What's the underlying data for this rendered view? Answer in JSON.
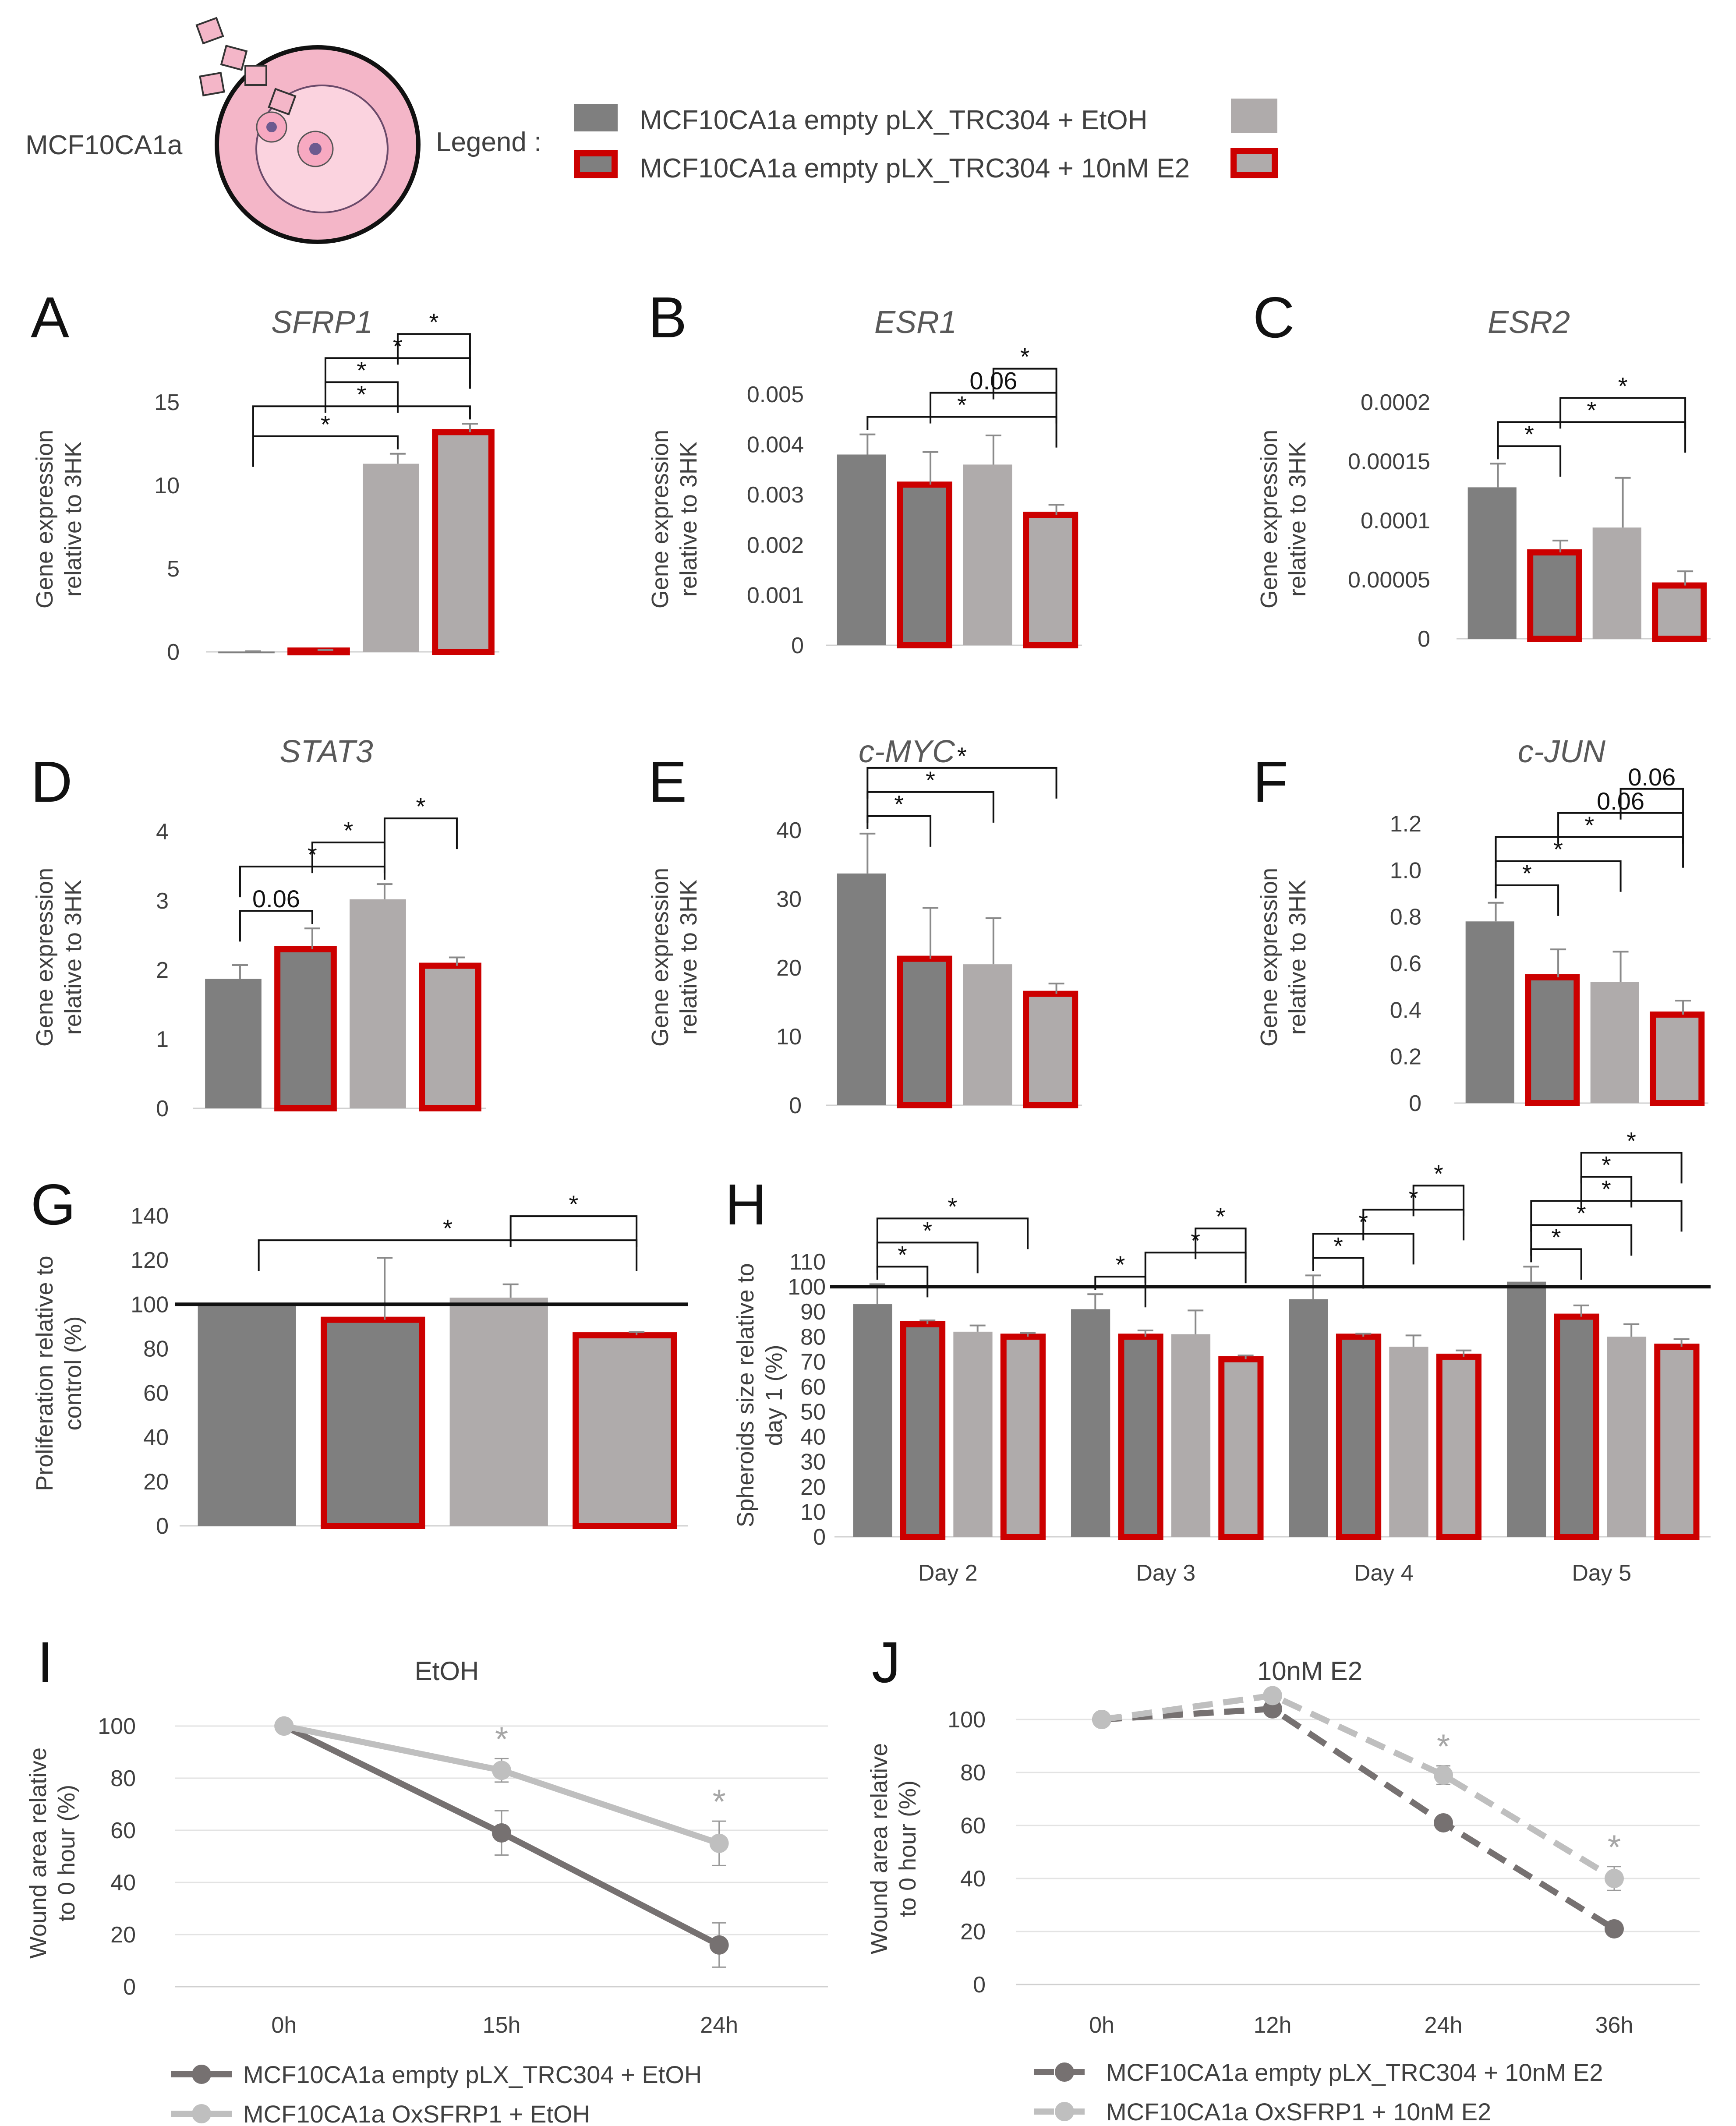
{
  "header": {
    "cell_label": "MCF10CA1a",
    "legend_title": "Legend :",
    "legend_items": [
      "MCF10CA1a empty pLX_TRC304 + EtOH",
      "MCF10CA1a empty pLX_TRC304 + 10nM E2"
    ]
  },
  "colors": {
    "dark_bar": "#7f7f7f",
    "light_bar": "#afabab",
    "highlight_outline": "#cc0000",
    "line_dark": "#767171",
    "line_light": "#bfbfbf"
  },
  "chart_data": [
    {
      "panel": "A",
      "type": "bar",
      "title": "SFRP1",
      "ylabel": [
        "Gene expression",
        "relative to 3HK"
      ],
      "ylim": [
        0,
        15
      ],
      "yticks": [
        "0",
        "5",
        "10",
        "15"
      ],
      "ytick_values": [
        0,
        5,
        10,
        15
      ],
      "values": [
        0.02,
        0.08,
        11.3,
        13.2
      ],
      "errors": [
        0.02,
        0.03,
        0.6,
        0.5
      ],
      "significance": [
        {
          "from": 0,
          "to": 2,
          "label": "*"
        },
        {
          "from": 0,
          "to": 3,
          "label": "*"
        },
        {
          "from": 1,
          "to": 2,
          "label": "*"
        },
        {
          "from": 1,
          "to": 3,
          "label": "*"
        },
        {
          "from": 2,
          "to": 3,
          "label": "*"
        }
      ]
    },
    {
      "panel": "B",
      "type": "bar",
      "title": "ESR1",
      "ylabel": [
        "Gene expression",
        "relative to 3HK"
      ],
      "ylim": [
        0,
        0.005
      ],
      "yticks": [
        "0",
        "0.001",
        "0.002",
        "0.003",
        "0.004",
        "0.005"
      ],
      "ytick_values": [
        0,
        0.001,
        0.002,
        0.003,
        0.004,
        0.005
      ],
      "values": [
        0.0038,
        0.0032,
        0.0036,
        0.0026
      ],
      "errors": [
        0.0004,
        0.00065,
        0.00058,
        0.0002
      ],
      "significance": [
        {
          "from": 0,
          "to": 3,
          "label": "*"
        },
        {
          "from": 1,
          "to": 3,
          "label": "0.06"
        },
        {
          "from": 2,
          "to": 3,
          "label": "*"
        }
      ]
    },
    {
      "panel": "C",
      "type": "bar",
      "title": "ESR2",
      "ylabel": [
        "Gene expression",
        "relative to 3HK"
      ],
      "ylim": [
        0,
        0.0002
      ],
      "yticks": [
        "0",
        "0.00005",
        "0.0001",
        "0.00015",
        "0.0002"
      ],
      "ytick_values": [
        0,
        5e-05,
        0.0001,
        0.00015,
        0.0002
      ],
      "values": [
        0.000128,
        7.3e-05,
        9.4e-05,
        4.5e-05
      ],
      "errors": [
        2e-05,
        1e-05,
        4.2e-05,
        1.2e-05
      ],
      "significance": [
        {
          "from": 0,
          "to": 1,
          "label": "*"
        },
        {
          "from": 0,
          "to": 3,
          "label": "*"
        },
        {
          "from": 1,
          "to": 3,
          "label": "*"
        }
      ]
    },
    {
      "panel": "D",
      "type": "bar",
      "title": "STAT3",
      "ylabel": [
        "Gene expression",
        "relative to 3HK"
      ],
      "ylim": [
        0,
        4
      ],
      "yticks": [
        "0",
        "1",
        "2",
        "3",
        "4"
      ],
      "ytick_values": [
        0,
        1,
        2,
        3,
        4
      ],
      "values": [
        1.87,
        2.3,
        3.02,
        2.06
      ],
      "errors": [
        0.2,
        0.3,
        0.22,
        0.12
      ],
      "significance": [
        {
          "from": 0,
          "to": 1,
          "label": "0.06"
        },
        {
          "from": 0,
          "to": 2,
          "label": "*"
        },
        {
          "from": 1,
          "to": 2,
          "label": "*"
        },
        {
          "from": 2,
          "to": 3,
          "label": "*"
        }
      ]
    },
    {
      "panel": "E",
      "type": "bar",
      "title": "c-MYC",
      "ylabel": [
        "Gene expression",
        "relative to 3HK"
      ],
      "ylim": [
        0,
        40
      ],
      "yticks": [
        "0",
        "10",
        "20",
        "30",
        "40"
      ],
      "ytick_values": [
        0,
        10,
        20,
        30,
        40
      ],
      "values": [
        33.7,
        21.3,
        20.5,
        16.2
      ],
      "errors": [
        5.8,
        7.4,
        6.7,
        1.5
      ],
      "significance": [
        {
          "from": 0,
          "to": 1,
          "label": "*"
        },
        {
          "from": 0,
          "to": 2,
          "label": "*"
        },
        {
          "from": 0,
          "to": 3,
          "label": "*"
        }
      ]
    },
    {
      "panel": "F",
      "type": "bar",
      "title": "c-JUN",
      "ylabel": [
        "Gene expression",
        "relative to 3HK"
      ],
      "ylim": [
        0,
        1.2
      ],
      "yticks": [
        "0",
        "0.2",
        "0.4",
        "0.6",
        "0.8",
        "1.0",
        "1.2"
      ],
      "ytick_values": [
        0,
        0.2,
        0.4,
        0.6,
        0.8,
        1.0,
        1.2
      ],
      "values": [
        0.78,
        0.54,
        0.52,
        0.38
      ],
      "errors": [
        0.08,
        0.12,
        0.13,
        0.06
      ],
      "significance": [
        {
          "from": 0,
          "to": 1,
          "label": "*"
        },
        {
          "from": 0,
          "to": 2,
          "label": "*"
        },
        {
          "from": 0,
          "to": 3,
          "label": "*"
        },
        {
          "from": 1,
          "to": 3,
          "label": "0.06"
        },
        {
          "from": 2,
          "to": 3,
          "label": "0.06"
        }
      ]
    },
    {
      "panel": "G",
      "type": "bar",
      "ylabel": [
        "Proliferation relative to",
        "control (%)"
      ],
      "ylim": [
        0,
        140
      ],
      "yticks": [
        "0",
        "20",
        "40",
        "60",
        "80",
        "100",
        "120",
        "140"
      ],
      "ytick_values": [
        0,
        20,
        40,
        60,
        80,
        100,
        120,
        140
      ],
      "reference_line": 100,
      "values": [
        100,
        93,
        103,
        86
      ],
      "errors": [
        0,
        28,
        6,
        1.5
      ],
      "significance": [
        {
          "from": 0,
          "to": 3,
          "label": "*"
        },
        {
          "from": 2,
          "to": 3,
          "label": "*"
        }
      ]
    },
    {
      "panel": "H",
      "type": "bar",
      "ylabel": [
        "Spheroids size relative to",
        "day 1 (%)"
      ],
      "ylim": [
        0,
        110
      ],
      "yticks": [
        "0",
        "10",
        "20",
        "30",
        "40",
        "50",
        "60",
        "70",
        "80",
        "90",
        "100",
        "110"
      ],
      "ytick_values": [
        0,
        10,
        20,
        30,
        40,
        50,
        60,
        70,
        80,
        90,
        100,
        110
      ],
      "reference_line": 100,
      "categories": [
        "Day 2",
        "Day 3",
        "Day 4",
        "Day 5"
      ],
      "groups": [
        {
          "values": [
            93,
            85,
            82,
            80
          ],
          "errors": [
            8,
            1.5,
            2.5,
            1.5
          ],
          "significance": [
            {
              "from": 0,
              "to": 1,
              "label": "*"
            },
            {
              "from": 0,
              "to": 2,
              "label": "*"
            },
            {
              "from": 0,
              "to": 3,
              "label": "*"
            }
          ]
        },
        {
          "values": [
            91,
            80,
            81,
            71
          ],
          "errors": [
            6,
            2.5,
            9.5,
            1.5
          ],
          "significance": [
            {
              "from": 0,
              "to": 1,
              "label": "*"
            },
            {
              "from": 1,
              "to": 3,
              "label": "*"
            },
            {
              "from": 2,
              "to": 3,
              "label": "*"
            }
          ]
        },
        {
          "values": [
            95,
            80,
            76,
            72
          ],
          "errors": [
            9.5,
            1.2,
            4.5,
            2.5
          ],
          "significance": [
            {
              "from": 0,
              "to": 1,
              "label": "*"
            },
            {
              "from": 0,
              "to": 2,
              "label": "*"
            },
            {
              "from": 1,
              "to": 3,
              "label": "*"
            },
            {
              "from": 2,
              "to": 3,
              "label": "*"
            }
          ]
        },
        {
          "values": [
            102,
            88,
            80,
            76
          ],
          "errors": [
            6,
            4.5,
            5,
            3
          ],
          "significance": [
            {
              "from": 0,
              "to": 1,
              "label": "*"
            },
            {
              "from": 0,
              "to": 2,
              "label": "*"
            },
            {
              "from": 0,
              "to": 3,
              "label": "*"
            },
            {
              "from": 1,
              "to": 2,
              "label": "*"
            },
            {
              "from": 1,
              "to": 3,
              "label": "*"
            }
          ]
        }
      ]
    },
    {
      "panel": "I",
      "type": "line",
      "title": "EtOH",
      "ylabel": [
        "Wound area relative",
        "to 0 hour (%)"
      ],
      "ylim": [
        0,
        100
      ],
      "yticks": [
        "0",
        "20",
        "40",
        "60",
        "80",
        "100"
      ],
      "ytick_values": [
        0,
        20,
        40,
        60,
        80,
        100
      ],
      "x": [
        "0h",
        "15h",
        "24h"
      ],
      "series": [
        {
          "name": "MCF10CA1a empty pLX_TRC304 + EtOH",
          "values": [
            100,
            59,
            16
          ],
          "errors": [
            0,
            8.5,
            8.5
          ],
          "style": "solid",
          "color": "#767171"
        },
        {
          "name": "MCF10CA1a OxSFRP1 + EtOH",
          "values": [
            100,
            83,
            55
          ],
          "errors": [
            0,
            4.5,
            8.5
          ],
          "style": "solid",
          "color": "#bfbfbf",
          "stars": [
            "",
            "*",
            "*"
          ]
        }
      ]
    },
    {
      "panel": "J",
      "type": "line",
      "title": "10nM E2",
      "ylabel": [
        "Wound area relative",
        "to 0 hour (%)"
      ],
      "ylim": [
        0,
        100
      ],
      "yticks": [
        "0",
        "20",
        "40",
        "60",
        "80",
        "100"
      ],
      "ytick_values": [
        0,
        20,
        40,
        60,
        80,
        100
      ],
      "x": [
        "0h",
        "12h",
        "24h",
        "36h"
      ],
      "series": [
        {
          "name": "MCF10CA1a empty pLX_TRC304 + 10nM E2",
          "values": [
            100,
            104,
            61,
            21
          ],
          "errors": [
            0,
            1.5,
            1.5,
            2
          ],
          "style": "dashed",
          "color": "#767171"
        },
        {
          "name": "MCF10CA1a OxSFRP1 + 10nM E2",
          "values": [
            100,
            109,
            79,
            40
          ],
          "errors": [
            0,
            1,
            3.5,
            4.5
          ],
          "style": "dashed",
          "color": "#bfbfbf",
          "stars": [
            "",
            "",
            "*",
            "*"
          ]
        }
      ]
    }
  ]
}
